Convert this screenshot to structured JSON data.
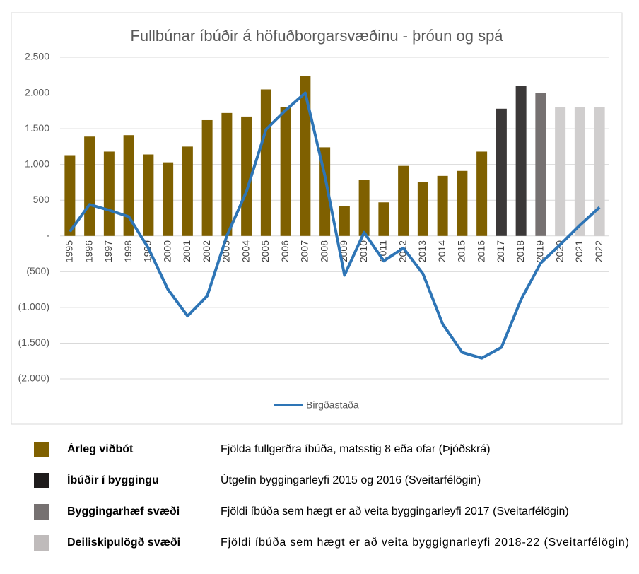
{
  "chart_data": {
    "type": "bar",
    "title": "Fullbúnar íbúðir á höfuðborgarsvæðinu - þróun og spá",
    "categories": [
      "1995",
      "1996",
      "1997",
      "1998",
      "1999",
      "2000",
      "2001",
      "2002",
      "2003",
      "2004",
      "2005",
      "2006",
      "2007",
      "2008",
      "2009",
      "2010",
      "2011",
      "2012",
      "2013",
      "2014",
      "2015",
      "2016",
      "2017",
      "2018",
      "2019",
      "2020",
      "2021",
      "2022"
    ],
    "ylim": [
      -2000,
      2500
    ],
    "yticks": [
      {
        "value": -2000,
        "label": "(2.000)"
      },
      {
        "value": -1500,
        "label": "(1.500)"
      },
      {
        "value": -1000,
        "label": "(1.000)"
      },
      {
        "value": -500,
        "label": "(500)"
      },
      {
        "value": 0,
        "label": "-"
      },
      500,
      {
        "value": 1000,
        "label": "1.000"
      },
      {
        "value": 1500,
        "label": "1.500"
      },
      {
        "value": 2000,
        "label": "2.000"
      },
      {
        "value": 2500,
        "label": "2.500"
      }
    ],
    "grid": true,
    "legend_position": "bottom",
    "series": [
      {
        "type": "bar",
        "colors": [
          "#7f6000",
          "#7f6000",
          "#7f6000",
          "#7f6000",
          "#7f6000",
          "#7f6000",
          "#7f6000",
          "#7f6000",
          "#7f6000",
          "#7f6000",
          "#7f6000",
          "#7f6000",
          "#7f6000",
          "#7f6000",
          "#7f6000",
          "#7f6000",
          "#7f6000",
          "#7f6000",
          "#7f6000",
          "#7f6000",
          "#7f6000",
          "#7f6000",
          "#3b3838",
          "#3b3838",
          "#767171",
          "#d0cece",
          "#d0cece",
          "#d0cece"
        ],
        "values": [
          1130,
          1390,
          1180,
          1410,
          1140,
          1030,
          1250,
          1620,
          1720,
          1670,
          2050,
          1800,
          2240,
          1240,
          420,
          780,
          470,
          980,
          750,
          840,
          910,
          1180,
          1780,
          2100,
          2000,
          1800,
          1800,
          1800
        ]
      },
      {
        "type": "line",
        "name": "Birgðastaða",
        "color": "#2e75b6",
        "values": [
          60,
          440,
          360,
          270,
          -170,
          -750,
          -1120,
          -840,
          0,
          620,
          1490,
          1760,
          2000,
          840,
          -550,
          50,
          -350,
          -170,
          -530,
          -1230,
          -1630,
          -1710,
          -1560,
          -890,
          -380,
          -120,
          150,
          400
        ]
      }
    ]
  },
  "legend_table": [
    {
      "color": "#7f6000",
      "label": "Árleg viðbót",
      "description": "Fjölda fullgerðra íbúða, matsstig 8 eða ofar (Þjóðskrá)"
    },
    {
      "color": "#1f1c1c",
      "label": "Íbúðir í byggingu",
      "description": "Útgefin byggingarleyfi 2015 og 2016 (Sveitarfélögin)"
    },
    {
      "color": "#767171",
      "label": "Byggingarhæf svæði",
      "description": "Fjöldi íbúða sem hægt er að veita byggingarleyfi 2017 (Sveitarfélögin)"
    },
    {
      "color": "#bfbbbb",
      "label": "Deiliskipulögð svæði",
      "description": "Fjöldi íbúða sem hægt er að veita byggignarleyfi 2018-22 (Sveitarfélögin)"
    }
  ]
}
